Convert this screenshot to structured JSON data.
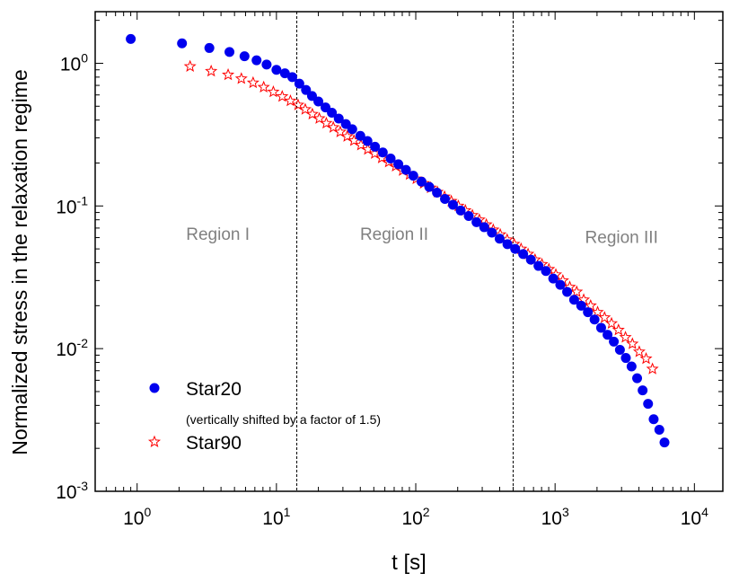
{
  "chart_data": {
    "type": "scatter",
    "xlabel": "t [s]",
    "ylabel": "Normalized stress in the relaxation regime",
    "xscale": "log",
    "yscale": "log",
    "xlim": [
      0.5,
      16000
    ],
    "ylim": [
      0.001,
      2.3
    ],
    "x_ticks": [
      {
        "value": 1,
        "base": "10",
        "exp": "0"
      },
      {
        "value": 10,
        "base": "10",
        "exp": "1"
      },
      {
        "value": 100,
        "base": "10",
        "exp": "2"
      },
      {
        "value": 1000,
        "base": "10",
        "exp": "3"
      },
      {
        "value": 10000,
        "base": "10",
        "exp": "4"
      }
    ],
    "y_ticks": [
      {
        "value": 1,
        "base": "10",
        "exp": "0"
      },
      {
        "value": 0.1,
        "base": "10",
        "exp": "-1"
      },
      {
        "value": 0.01,
        "base": "10",
        "exp": "-2"
      },
      {
        "value": 0.001,
        "base": "10",
        "exp": "-3"
      }
    ],
    "grid": false,
    "vlines": [
      14,
      500
    ],
    "region_labels": [
      {
        "text": "Region I",
        "x": 3.8,
        "y": 0.058
      },
      {
        "text": "Region II",
        "x": 70,
        "y": 0.058
      },
      {
        "text": "Region III",
        "x": 3000,
        "y": 0.055
      }
    ],
    "legend": {
      "position": "bottom-left",
      "note": "(vertically shifted by a factor of 1.5)"
    },
    "series": [
      {
        "name": "Star20",
        "marker": "filled-circle",
        "color": "#0000ee",
        "x": [
          0.9,
          2.1,
          3.3,
          4.6,
          5.9,
          7.2,
          8.5,
          10,
          11.5,
          13,
          14.6,
          16.3,
          18,
          20,
          22.5,
          25,
          28,
          31.5,
          35,
          40,
          45,
          51,
          58,
          66,
          75,
          85,
          96,
          110,
          125,
          142,
          162,
          185,
          210,
          240,
          273,
          310,
          352,
          400,
          455,
          517,
          590,
          670,
          760,
          860,
          970,
          1090,
          1220,
          1370,
          1540,
          1720,
          1920,
          2140,
          2380,
          2640,
          2920,
          3220,
          3540,
          3880,
          4250,
          4650,
          5100,
          5600,
          6100
        ],
        "y": [
          1.48,
          1.38,
          1.28,
          1.2,
          1.12,
          1.05,
          0.98,
          0.9,
          0.85,
          0.8,
          0.72,
          0.65,
          0.59,
          0.54,
          0.49,
          0.45,
          0.41,
          0.375,
          0.345,
          0.31,
          0.285,
          0.26,
          0.237,
          0.215,
          0.196,
          0.179,
          0.163,
          0.148,
          0.136,
          0.124,
          0.112,
          0.102,
          0.093,
          0.085,
          0.077,
          0.071,
          0.065,
          0.059,
          0.054,
          0.05,
          0.046,
          0.042,
          0.038,
          0.035,
          0.031,
          0.028,
          0.025,
          0.022,
          0.02,
          0.018,
          0.016,
          0.014,
          0.0125,
          0.0112,
          0.0098,
          0.0086,
          0.0075,
          0.0062,
          0.0051,
          0.0041,
          0.0032,
          0.0027,
          0.0022
        ]
      },
      {
        "name": "Star90",
        "marker": "open-star",
        "color": "#ff0000",
        "x": [
          2.4,
          3.4,
          4.5,
          5.6,
          6.8,
          8.1,
          9.5,
          11,
          12.6,
          14.3,
          16.1,
          18.1,
          20.3,
          22.8,
          25.6,
          28.7,
          32.2,
          36,
          40.4,
          45.3,
          50.8,
          57,
          64,
          71.8,
          80.5,
          90.3,
          101,
          114,
          128,
          143,
          161,
          180,
          202,
          227,
          255,
          286,
          321,
          360,
          404,
          453,
          508,
          570,
          640,
          718,
          805,
          903,
          1013,
          1137,
          1275,
          1430,
          1605,
          1800,
          2020,
          2266,
          2542,
          2852,
          3200,
          3590,
          4020,
          4500,
          5000
        ],
        "y": [
          0.95,
          0.88,
          0.83,
          0.78,
          0.73,
          0.68,
          0.63,
          0.585,
          0.545,
          0.51,
          0.475,
          0.44,
          0.41,
          0.38,
          0.355,
          0.33,
          0.307,
          0.287,
          0.267,
          0.249,
          0.233,
          0.217,
          0.203,
          0.19,
          0.177,
          0.166,
          0.155,
          0.144,
          0.134,
          0.125,
          0.116,
          0.108,
          0.1,
          0.093,
          0.086,
          0.08,
          0.074,
          0.068,
          0.063,
          0.058,
          0.054,
          0.05,
          0.046,
          0.042,
          0.039,
          0.036,
          0.033,
          0.03,
          0.027,
          0.025,
          0.022,
          0.02,
          0.018,
          0.0165,
          0.015,
          0.0135,
          0.012,
          0.0108,
          0.0095,
          0.0085,
          0.0072
        ]
      }
    ]
  }
}
